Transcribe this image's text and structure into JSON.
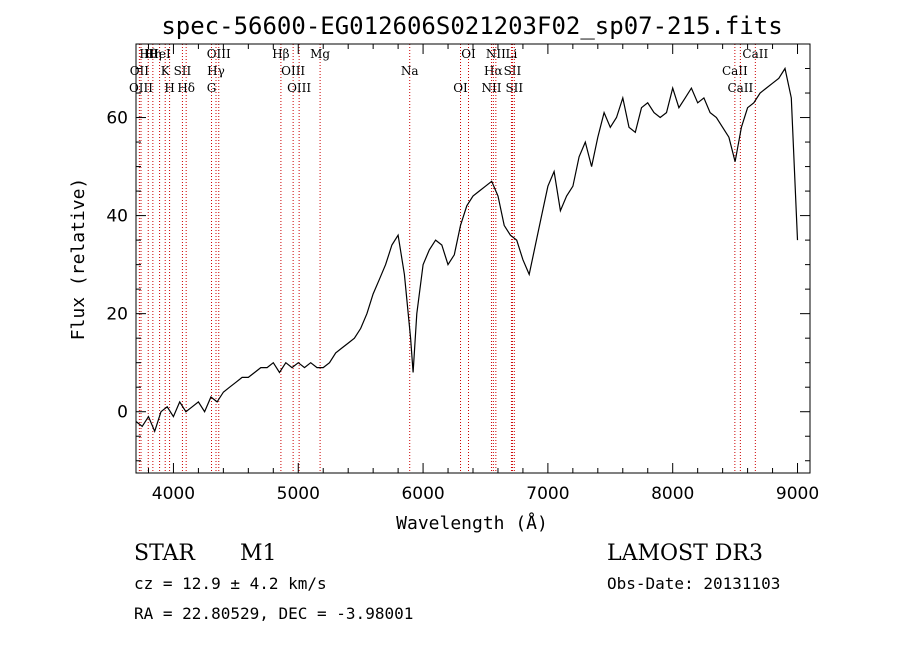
{
  "chart_data": {
    "type": "line",
    "title": "spec-56600-EG012606S021203F02_sp07-215.fits",
    "xlabel": "Wavelength (Å)",
    "ylabel": "Flux (relative)",
    "xlim": [
      3700,
      9100
    ],
    "ylim": [
      -12.5,
      75
    ],
    "xticks": [
      4000,
      5000,
      6000,
      7000,
      8000,
      9000
    ],
    "yticks": [
      0,
      20,
      40,
      60
    ],
    "grid": false,
    "series": [
      {
        "name": "flux",
        "x": [
          3700,
          3750,
          3800,
          3850,
          3900,
          3950,
          4000,
          4050,
          4100,
          4150,
          4200,
          4250,
          4300,
          4350,
          4400,
          4450,
          4500,
          4550,
          4600,
          4650,
          4700,
          4750,
          4800,
          4850,
          4900,
          4950,
          5000,
          5050,
          5100,
          5150,
          5200,
          5250,
          5300,
          5350,
          5400,
          5450,
          5500,
          5550,
          5600,
          5650,
          5700,
          5750,
          5800,
          5850,
          5900,
          5920,
          5950,
          6000,
          6050,
          6100,
          6150,
          6200,
          6250,
          6300,
          6350,
          6400,
          6450,
          6500,
          6550,
          6600,
          6650,
          6700,
          6750,
          6800,
          6850,
          6900,
          6950,
          7000,
          7050,
          7100,
          7150,
          7200,
          7250,
          7300,
          7350,
          7400,
          7450,
          7500,
          7550,
          7600,
          7650,
          7700,
          7750,
          7800,
          7850,
          7900,
          7950,
          8000,
          8050,
          8100,
          8150,
          8200,
          8250,
          8300,
          8350,
          8400,
          8450,
          8500,
          8550,
          8600,
          8650,
          8700,
          8750,
          8800,
          8850,
          8900,
          8950,
          9000
        ],
        "y": [
          -2,
          -3,
          -1,
          -4,
          0,
          1,
          -1,
          2,
          0,
          1,
          2,
          0,
          3,
          2,
          4,
          5,
          6,
          7,
          7,
          8,
          9,
          9,
          10,
          8,
          10,
          9,
          10,
          9,
          10,
          9,
          9,
          10,
          12,
          13,
          14,
          15,
          17,
          20,
          24,
          27,
          30,
          34,
          36,
          28,
          15,
          8,
          20,
          30,
          33,
          35,
          34,
          30,
          32,
          38,
          42,
          44,
          45,
          46,
          47,
          44,
          38,
          36,
          35,
          31,
          28,
          34,
          40,
          46,
          49,
          41,
          44,
          46,
          52,
          55,
          50,
          56,
          61,
          58,
          60,
          64,
          58,
          57,
          62,
          63,
          61,
          60,
          61,
          66,
          62,
          64,
          66,
          63,
          64,
          61,
          60,
          58,
          56,
          51,
          58,
          62,
          63,
          65,
          66,
          67,
          68,
          70,
          64,
          35
        ]
      }
    ],
    "spectral_lines": [
      {
        "label": "Hθ",
        "wavelength": 3798
      },
      {
        "label": "OII",
        "wavelength": 3727
      },
      {
        "label": "OIII",
        "wavelength": 3740
      },
      {
        "label": "Hη",
        "wavelength": 3835
      },
      {
        "label": "K",
        "wavelength": 3934
      },
      {
        "label": "H",
        "wavelength": 3969
      },
      {
        "label": "HeI",
        "wavelength": 3889
      },
      {
        "label": "SII",
        "wavelength": 4072
      },
      {
        "label": "Hδ",
        "wavelength": 4102
      },
      {
        "label": "OIII",
        "wavelength": 4363
      },
      {
        "label": "Hγ",
        "wavelength": 4341
      },
      {
        "label": "G",
        "wavelength": 4305
      },
      {
        "label": "Hβ",
        "wavelength": 4861
      },
      {
        "label": "OIII",
        "wavelength": 4959
      },
      {
        "label": "OIII",
        "wavelength": 5007
      },
      {
        "label": "Mg",
        "wavelength": 5175
      },
      {
        "label": "Na",
        "wavelength": 5893
      },
      {
        "label": "OI",
        "wavelength": 6300
      },
      {
        "label": "OI",
        "wavelength": 6364
      },
      {
        "label": "Hα",
        "wavelength": 6563
      },
      {
        "label": "NII",
        "wavelength": 6548
      },
      {
        "label": "NII",
        "wavelength": 6583
      },
      {
        "label": "SII",
        "wavelength": 6716
      },
      {
        "label": "SII",
        "wavelength": 6731
      },
      {
        "label": "Li",
        "wavelength": 6708
      },
      {
        "label": "CaII",
        "wavelength": 8498
      },
      {
        "label": "CaII",
        "wavelength": 8542
      },
      {
        "label": "CaII",
        "wavelength": 8662
      }
    ]
  },
  "info": {
    "class": "STAR",
    "subclass": "M1",
    "survey": "LAMOST DR3",
    "redshift": "cz = 12.9 ± 4.2 km/s",
    "obs_date": "Obs-Date: 20131103",
    "coords": "RA =  22.80529, DEC =  -3.98001"
  },
  "colors": {
    "line_marker": "#cc0000",
    "flux": "#000000"
  }
}
